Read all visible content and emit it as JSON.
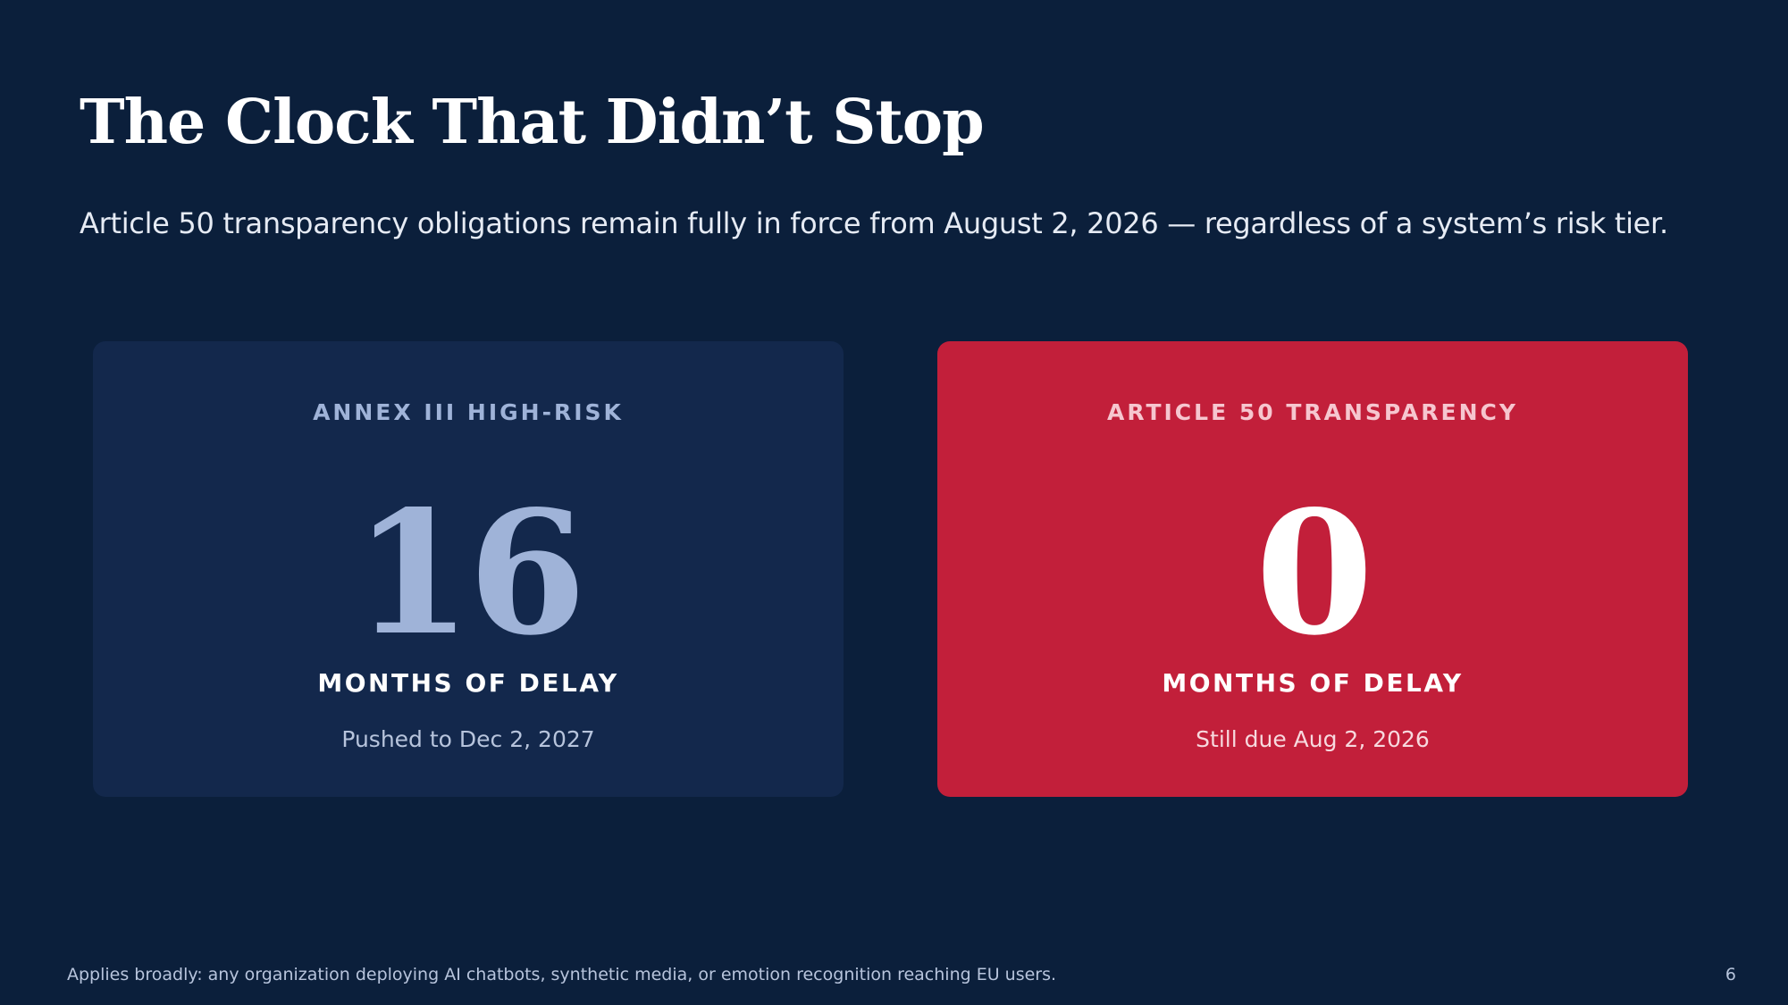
{
  "slide": {
    "title": "The Clock That Didn’t Stop",
    "subtitle": "Article 50 transparency obligations remain fully in force from August 2, 2026 — regardless of a system’s risk tier.",
    "footer_note": "Applies broadly: any organization deploying AI chatbots, synthetic media, or emotion recognition reaching EU users.",
    "page_number": "6"
  },
  "cards": [
    {
      "label": "ANNEX III HIGH-RISK",
      "value": "16",
      "unit": "MONTHS OF DELAY",
      "note": "Pushed to Dec 2, 2027"
    },
    {
      "label": "ARTICLE 50 TRANSPARENCY",
      "value": "0",
      "unit": "MONTHS OF DELAY",
      "note": "Still due Aug 2, 2026"
    }
  ],
  "colors": {
    "background": "#0b1f3b",
    "card_neutral": "#13284c",
    "card_accent": "#c21f3a",
    "muted_text": "#9fb3d8"
  }
}
